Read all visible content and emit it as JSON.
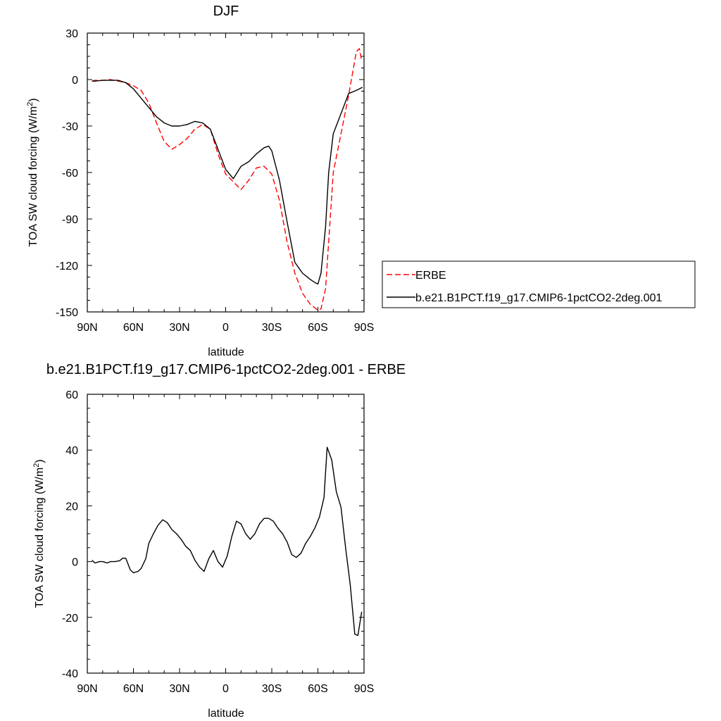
{
  "chart_data": [
    {
      "type": "line",
      "title": "DJF",
      "xlabel": "latitude",
      "ylabel": "TOA SW cloud forcing (W/m",
      "ylabel_sup": "2",
      "ylabel_end": ")",
      "xlim": [
        -90,
        90
      ],
      "ylim": [
        -150,
        30
      ],
      "x_ticks": [
        -90,
        -60,
        -30,
        0,
        30,
        60,
        90
      ],
      "x_tick_labels": [
        "90N",
        "60N",
        "30N",
        "0",
        "30S",
        "60S",
        "90S"
      ],
      "y_ticks": [
        30,
        0,
        -30,
        -60,
        -90,
        -120,
        -150
      ],
      "y_tick_labels": [
        "30",
        "0",
        "-30",
        "-60",
        "-90",
        "-120",
        "-150"
      ],
      "legend_position": "right",
      "series": [
        {
          "name": "ERBE",
          "color": "#ff0000",
          "dash": "dashed",
          "x": [
            -87,
            -85,
            -80,
            -75,
            -70,
            -65,
            -60,
            -55,
            -50,
            -45,
            -40,
            -35,
            -30,
            -25,
            -20,
            -15,
            -10,
            -5,
            0,
            5,
            10,
            15,
            20,
            25,
            30,
            35,
            40,
            45,
            50,
            55,
            60,
            62,
            65,
            70,
            75,
            80,
            85,
            87,
            88.5
          ],
          "y": [
            -1,
            -0.5,
            -0.5,
            0,
            -1,
            -2,
            -4,
            -7,
            -15,
            -28,
            -40,
            -45,
            -42,
            -38,
            -32,
            -29,
            -32,
            -48,
            -61,
            -66,
            -71,
            -65,
            -57,
            -56,
            -61,
            -78,
            -105,
            -125,
            -138,
            -145,
            -149,
            -148,
            -135,
            -60,
            -35,
            -10,
            18,
            20,
            12
          ]
        },
        {
          "name": "b.e21.B1PCT.f19_g17.CMIP6-1pctCO2-2deg.001",
          "color": "#000000",
          "dash": "solid",
          "x": [
            -87,
            -85,
            -80,
            -75,
            -70,
            -65,
            -60,
            -55,
            -50,
            -45,
            -40,
            -35,
            -30,
            -25,
            -20,
            -15,
            -10,
            -5,
            0,
            5,
            10,
            15,
            20,
            25,
            28,
            30,
            35,
            40,
            45,
            50,
            55,
            58,
            60,
            62,
            65,
            67,
            70,
            75,
            80,
            85,
            89
          ],
          "y": [
            -1,
            -1,
            -0.5,
            -0.5,
            -0.5,
            -2,
            -6,
            -12,
            -18,
            -24,
            -28,
            -30,
            -30,
            -29,
            -27,
            -28,
            -32,
            -45,
            -58,
            -64,
            -56,
            -53,
            -48,
            -44,
            -43,
            -46,
            -65,
            -92,
            -118,
            -125,
            -129,
            -131,
            -132,
            -125,
            -95,
            -60,
            -35,
            -22,
            -9,
            -7,
            -5
          ]
        }
      ]
    },
    {
      "type": "line",
      "title": "b.e21.B1PCT.f19_g17.CMIP6-1pctCO2-2deg.001 - ERBE",
      "xlabel": "latitude",
      "ylabel": "TOA SW cloud forcing (W/m",
      "ylabel_sup": "2",
      "ylabel_end": ")",
      "xlim": [
        -90,
        90
      ],
      "ylim": [
        -40,
        60
      ],
      "x_ticks": [
        -90,
        -60,
        -30,
        0,
        30,
        60,
        90
      ],
      "x_tick_labels": [
        "90N",
        "60N",
        "30N",
        "0",
        "30S",
        "60S",
        "90S"
      ],
      "y_ticks": [
        60,
        40,
        20,
        0,
        -20,
        -40
      ],
      "y_tick_labels": [
        "60",
        "40",
        "20",
        "0",
        "-20",
        "-40"
      ],
      "series": [
        {
          "name": "b.e21.B1PCT.f19_g17.CMIP6-1pctCO2-2deg.001 - ERBE",
          "color": "#000000",
          "dash": "solid",
          "x": [
            -87,
            -85,
            -82,
            -80,
            -77,
            -75,
            -72,
            -69,
            -67,
            -65,
            -62,
            -60,
            -57,
            -55,
            -52,
            -50,
            -47,
            -44,
            -41,
            -38,
            -35,
            -32,
            -29,
            -26,
            -23,
            -20,
            -17,
            -14,
            -11,
            -8,
            -5,
            -2,
            1,
            4,
            7,
            10,
            13,
            16,
            19,
            22,
            25,
            28,
            31,
            34,
            37,
            40,
            43,
            46,
            49,
            52,
            55,
            58,
            61,
            64,
            66,
            69,
            72,
            75,
            78,
            81,
            84,
            86,
            88.5
          ],
          "y": [
            0.5,
            -0.5,
            0,
            0,
            -0.5,
            0,
            0,
            0.3,
            1.2,
            1.2,
            -3,
            -4,
            -3.5,
            -2.5,
            1,
            6.5,
            10,
            13,
            15,
            14,
            11.5,
            10,
            8,
            5.5,
            4,
            0.5,
            -2,
            -3.5,
            1,
            4,
            0,
            -2,
            2,
            9,
            14.5,
            13.5,
            10,
            8,
            10,
            13.5,
            15.5,
            15.5,
            14.5,
            12,
            10,
            7,
            2.5,
            1.5,
            3,
            6.5,
            9,
            12,
            16,
            23,
            41,
            36.5,
            25,
            19.5,
            5,
            -8,
            -26,
            -26.5,
            -18
          ]
        }
      ]
    }
  ]
}
